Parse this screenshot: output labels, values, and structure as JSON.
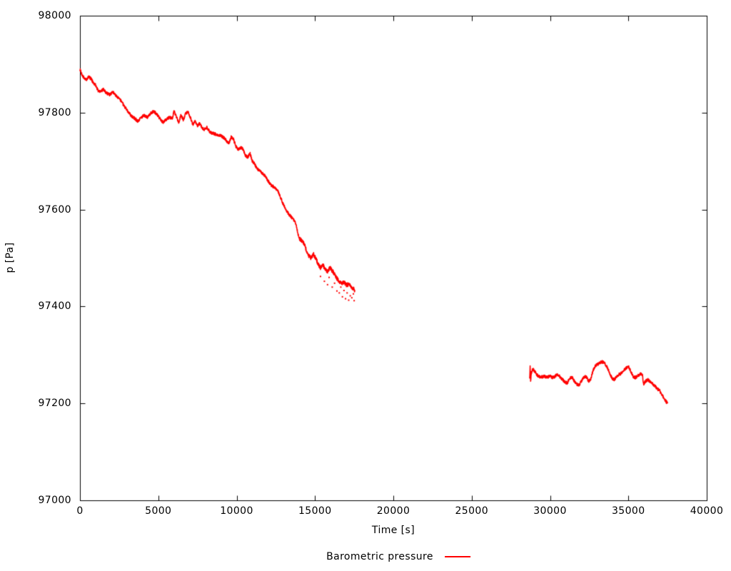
{
  "chart_data": {
    "type": "line",
    "title": "",
    "xlabel": "Time [s]",
    "ylabel": "p [Pa]",
    "xlim": [
      0,
      40000
    ],
    "ylim": [
      97000,
      98000
    ],
    "xticks": [
      0,
      5000,
      10000,
      15000,
      20000,
      25000,
      30000,
      35000,
      40000
    ],
    "yticks": [
      97000,
      97200,
      97400,
      97600,
      97800,
      98000
    ],
    "grid": false,
    "axis_color": "#000000",
    "background_color": "#ffffff",
    "legend": {
      "label": "Barometric pressure",
      "color": "#ff0000",
      "position": "below"
    },
    "series": [
      {
        "name": "Barometric pressure",
        "color": "#ff0000",
        "style": "noisy-dense-dots",
        "segments": [
          [
            [
              0,
              97890
            ],
            [
              100,
              97880
            ],
            [
              250,
              97872
            ],
            [
              400,
              97868
            ],
            [
              550,
              97874
            ],
            [
              700,
              97870
            ],
            [
              850,
              97862
            ],
            [
              1000,
              97857
            ],
            [
              1150,
              97846
            ],
            [
              1300,
              97843
            ],
            [
              1500,
              97848
            ],
            [
              1700,
              97840
            ],
            [
              1900,
              97837
            ],
            [
              2100,
              97843
            ],
            [
              2300,
              97834
            ],
            [
              2500,
              97830
            ],
            [
              2700,
              97820
            ],
            [
              2900,
              97810
            ],
            [
              3100,
              97800
            ],
            [
              3300,
              97793
            ],
            [
              3500,
              97788
            ],
            [
              3700,
              97782
            ],
            [
              3900,
              97790
            ],
            [
              4100,
              97795
            ],
            [
              4300,
              97790
            ],
            [
              4500,
              97798
            ],
            [
              4700,
              97803
            ],
            [
              4900,
              97797
            ],
            [
              5100,
              97788
            ],
            [
              5300,
              97780
            ],
            [
              5500,
              97786
            ],
            [
              5700,
              97790
            ],
            [
              5900,
              97788
            ],
            [
              6000,
              97803
            ],
            [
              6150,
              97792
            ],
            [
              6300,
              97780
            ],
            [
              6450,
              97795
            ],
            [
              6600,
              97785
            ],
            [
              6750,
              97799
            ],
            [
              6900,
              97801
            ],
            [
              7050,
              97790
            ],
            [
              7200,
              97775
            ],
            [
              7350,
              97782
            ],
            [
              7500,
              97772
            ],
            [
              7650,
              97778
            ],
            [
              7800,
              97768
            ],
            [
              7950,
              97765
            ],
            [
              8100,
              97770
            ],
            [
              8250,
              97762
            ],
            [
              8400,
              97758
            ],
            [
              8600,
              97756
            ],
            [
              8800,
              97754
            ],
            [
              9000,
              97752
            ],
            [
              9200,
              97748
            ],
            [
              9350,
              97742
            ],
            [
              9500,
              97736
            ],
            [
              9650,
              97750
            ],
            [
              9800,
              97745
            ],
            [
              9950,
              97730
            ],
            [
              10100,
              97724
            ],
            [
              10250,
              97728
            ],
            [
              10400,
              97725
            ],
            [
              10550,
              97712
            ],
            [
              10700,
              97708
            ],
            [
              10850,
              97716
            ],
            [
              11000,
              97700
            ],
            [
              11150,
              97694
            ],
            [
              11300,
              97684
            ],
            [
              11450,
              97681
            ],
            [
              11600,
              97676
            ],
            [
              11750,
              97672
            ],
            [
              11900,
              97665
            ],
            [
              12050,
              97657
            ],
            [
              12200,
              97650
            ],
            [
              12350,
              97647
            ],
            [
              12500,
              97643
            ],
            [
              12650,
              97637
            ],
            [
              12800,
              97625
            ],
            [
              12950,
              97613
            ],
            [
              13100,
              97603
            ],
            [
              13250,
              97594
            ],
            [
              13400,
              97588
            ],
            [
              13550,
              97582
            ],
            [
              13700,
              97576
            ],
            [
              13800,
              97568
            ],
            [
              13900,
              97552
            ],
            [
              14000,
              97540
            ],
            [
              14150,
              97536
            ],
            [
              14300,
              97530
            ],
            [
              14450,
              97515
            ],
            [
              14600,
              97505
            ],
            [
              14750,
              97500
            ],
            [
              14900,
              97508
            ],
            [
              15050,
              97499
            ],
            [
              15200,
              97488
            ],
            [
              15350,
              97480
            ],
            [
              15500,
              97486
            ],
            [
              15650,
              97478
            ],
            [
              15800,
              97472
            ],
            [
              15950,
              97480
            ],
            [
              16100,
              97474
            ],
            [
              16250,
              97466
            ],
            [
              16400,
              97458
            ],
            [
              16550,
              97452
            ],
            [
              16700,
              97447
            ],
            [
              16850,
              97450
            ],
            [
              17000,
              97444
            ],
            [
              17150,
              97446
            ],
            [
              17300,
              97440
            ],
            [
              17450,
              97437
            ],
            [
              17550,
              97433
            ]
          ],
          [
            [
              28700,
              97252
            ],
            [
              28730,
              97275
            ],
            [
              28760,
              97245
            ],
            [
              28800,
              97262
            ],
            [
              28900,
              97272
            ],
            [
              29000,
              97267
            ],
            [
              29100,
              97262
            ],
            [
              29250,
              97256
            ],
            [
              29400,
              97254
            ],
            [
              29600,
              97256
            ],
            [
              29800,
              97254
            ],
            [
              30000,
              97256
            ],
            [
              30200,
              97253
            ],
            [
              30350,
              97257
            ],
            [
              30500,
              97260
            ],
            [
              30650,
              97254
            ],
            [
              30800,
              97249
            ],
            [
              30950,
              97244
            ],
            [
              31100,
              97242
            ],
            [
              31250,
              97252
            ],
            [
              31400,
              97254
            ],
            [
              31550,
              97246
            ],
            [
              31700,
              97240
            ],
            [
              31850,
              97237
            ],
            [
              32000,
              97246
            ],
            [
              32150,
              97253
            ],
            [
              32300,
              97256
            ],
            [
              32450,
              97246
            ],
            [
              32600,
              97250
            ],
            [
              32750,
              97268
            ],
            [
              32900,
              97278
            ],
            [
              33050,
              97281
            ],
            [
              33200,
              97284
            ],
            [
              33350,
              97286
            ],
            [
              33500,
              97282
            ],
            [
              33650,
              97275
            ],
            [
              33800,
              97262
            ],
            [
              33950,
              97252
            ],
            [
              34100,
              97249
            ],
            [
              34250,
              97256
            ],
            [
              34400,
              97260
            ],
            [
              34550,
              97262
            ],
            [
              34700,
              97268
            ],
            [
              34850,
              97273
            ],
            [
              35000,
              97277
            ],
            [
              35150,
              97266
            ],
            [
              35300,
              97256
            ],
            [
              35450,
              97253
            ],
            [
              35600,
              97257
            ],
            [
              35750,
              97261
            ],
            [
              35900,
              97258
            ],
            [
              35960,
              97240
            ],
            [
              36100,
              97246
            ],
            [
              36250,
              97249
            ],
            [
              36400,
              97244
            ],
            [
              36550,
              97240
            ],
            [
              36700,
              97236
            ],
            [
              36850,
              97230
            ],
            [
              37000,
              97226
            ],
            [
              37150,
              97218
            ],
            [
              37300,
              97210
            ],
            [
              37400,
              97204
            ],
            [
              37500,
              97200
            ]
          ]
        ],
        "outliers": [
          [
            15350,
            97462
          ],
          [
            15600,
            97452
          ],
          [
            15800,
            97445
          ],
          [
            15900,
            97460
          ],
          [
            16100,
            97440
          ],
          [
            16250,
            97448
          ],
          [
            16400,
            97432
          ],
          [
            16550,
            97428
          ],
          [
            16650,
            97440
          ],
          [
            16750,
            97420
          ],
          [
            16850,
            97433
          ],
          [
            16950,
            97416
          ],
          [
            17050,
            97428
          ],
          [
            17150,
            97413
          ],
          [
            17250,
            97422
          ],
          [
            17350,
            97418
          ],
          [
            17450,
            97426
          ],
          [
            17500,
            97412
          ]
        ]
      }
    ]
  }
}
